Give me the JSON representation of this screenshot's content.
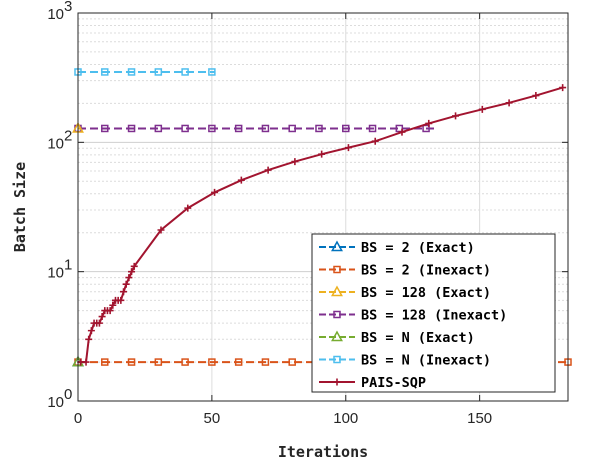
{
  "chart_data": {
    "type": "line",
    "xlabel": "Iterations",
    "ylabel": "Batch Size",
    "xlim": [
      0,
      183
    ],
    "ylim": [
      1,
      1000
    ],
    "yscale": "log",
    "grid": true,
    "legend_position": "lower-right",
    "x_ticks": [
      0,
      50,
      100,
      150
    ],
    "y_ticks": [
      {
        "value": 1,
        "base": "10",
        "exp": "0"
      },
      {
        "value": 10,
        "base": "10",
        "exp": "1"
      },
      {
        "value": 100,
        "base": "10",
        "exp": "2"
      },
      {
        "value": 1000,
        "base": "10",
        "exp": "3"
      }
    ],
    "series": [
      {
        "name": "BS = 2 (Exact)",
        "color": "#0072BD",
        "marker": "triangle",
        "dash": "dashed",
        "x": [
          0,
          1
        ],
        "y": [
          2,
          2
        ],
        "marker_x": [
          0
        ]
      },
      {
        "name": "BS = 2 (Inexact)",
        "color": "#D95319",
        "marker": "square",
        "dash": "dashed",
        "x": [
          0,
          183
        ],
        "y": [
          2,
          2
        ],
        "marker_x": [
          0,
          10,
          20,
          30,
          40,
          50,
          60,
          70,
          80,
          90,
          100,
          110,
          120,
          130,
          140,
          150,
          160,
          170,
          183
        ]
      },
      {
        "name": "BS = 128 (Exact)",
        "color": "#EDB120",
        "marker": "triangle",
        "dash": "dashed",
        "x": [
          0,
          1
        ],
        "y": [
          128,
          128
        ],
        "marker_x": [
          0
        ]
      },
      {
        "name": "BS = 128 (Inexact)",
        "color": "#7E2F8E",
        "marker": "square",
        "dash": "dashed",
        "x": [
          0,
          133
        ],
        "y": [
          128,
          128
        ],
        "marker_x": [
          0,
          10,
          20,
          30,
          40,
          50,
          60,
          70,
          80,
          90,
          100,
          110,
          120,
          130
        ]
      },
      {
        "name": "BS = N (Exact)",
        "color": "#77AC30",
        "marker": "triangle",
        "dash": "dashed",
        "x": [
          0,
          1
        ],
        "y": [
          2,
          2
        ],
        "marker_x": [
          0
        ]
      },
      {
        "name": "BS = N (Inexact)",
        "color": "#4DBEEE",
        "marker": "square",
        "dash": "dashed",
        "x": [
          0,
          51
        ],
        "y": [
          350,
          350
        ],
        "marker_x": [
          0,
          10,
          20,
          30,
          40,
          50
        ]
      },
      {
        "name": "PAIS-SQP",
        "color": "#A2142F",
        "marker": "plus",
        "dash": "solid",
        "x": [
          0,
          3,
          4,
          6,
          8,
          10,
          11,
          12,
          14,
          16,
          18,
          21,
          31,
          41,
          51,
          61,
          71,
          81,
          91,
          101,
          111,
          121,
          131,
          141,
          151,
          161,
          171,
          181
        ],
        "y": [
          2,
          2,
          3,
          4,
          4,
          5,
          5,
          5,
          6,
          6,
          8,
          11,
          21,
          31,
          41,
          51,
          61,
          71,
          81,
          91,
          102,
          120,
          140,
          160,
          180,
          202,
          230,
          265
        ],
        "marker_x": [
          1,
          3,
          4,
          5,
          6,
          7,
          8,
          9,
          10,
          11,
          12,
          13,
          14,
          15,
          16,
          17,
          18,
          19,
          20,
          21,
          31,
          41,
          51,
          61,
          71,
          81,
          91,
          101,
          111,
          121,
          131,
          141,
          151,
          161,
          171,
          181
        ]
      }
    ]
  },
  "colors": {
    "frame": "#262626",
    "grid": "#dcdcdc",
    "background": "#ffffff"
  }
}
